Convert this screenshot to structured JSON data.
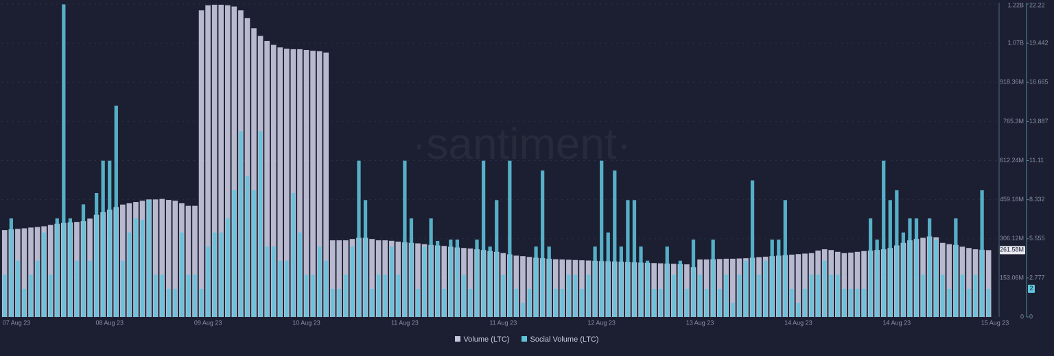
{
  "chart_data": {
    "type": "bar",
    "watermark": "·santiment·",
    "categories": [
      null,
      "07 Aug 23",
      null,
      null,
      null,
      null,
      null,
      null,
      null,
      null,
      null,
      null,
      null,
      null,
      null,
      null,
      "08 Aug 23",
      null,
      null,
      null,
      null,
      null,
      null,
      null,
      null,
      null,
      null,
      null,
      null,
      null,
      null,
      "09 Aug 23",
      null,
      null,
      null,
      null,
      null,
      null,
      null,
      null,
      null,
      null,
      null,
      null,
      null,
      null,
      "10 Aug 23",
      null,
      null,
      null,
      null,
      null,
      null,
      null,
      null,
      null,
      null,
      null,
      null,
      null,
      null,
      "11 Aug 23",
      null,
      null,
      null,
      null,
      null,
      null,
      null,
      null,
      null,
      null,
      null,
      null,
      null,
      null,
      "11 Aug 23",
      null,
      null,
      null,
      null,
      null,
      null,
      null,
      null,
      null,
      null,
      null,
      null,
      null,
      null,
      "12 Aug 23",
      null,
      null,
      null,
      null,
      null,
      null,
      null,
      null,
      null,
      null,
      null,
      null,
      null,
      null,
      "13 Aug 23",
      null,
      null,
      null,
      null,
      null,
      null,
      null,
      null,
      null,
      null,
      null,
      null,
      null,
      null,
      "14 Aug 23",
      null,
      null,
      null,
      null,
      null,
      null,
      null,
      null,
      null,
      null,
      null,
      null,
      null,
      null,
      "14 Aug 23",
      null,
      null,
      null,
      null,
      null,
      null,
      null,
      null,
      null,
      null,
      null,
      null,
      null,
      null,
      "15 Aug 23"
    ],
    "series": [
      {
        "name": "Volume (LTC)",
        "color": "#c5c7dc",
        "values": [
          340000000,
          343000000,
          345000000,
          347000000,
          350000000,
          352000000,
          355000000,
          360000000,
          365000000,
          368000000,
          370000000,
          372000000,
          375000000,
          385000000,
          400000000,
          410000000,
          420000000,
          430000000,
          440000000,
          445000000,
          450000000,
          455000000,
          460000000,
          460000000,
          462000000,
          458000000,
          455000000,
          445000000,
          435000000,
          435000000,
          1200000000,
          1220000000,
          1222000000,
          1222000000,
          1220000000,
          1215000000,
          1200000000,
          1170000000,
          1130000000,
          1100000000,
          1080000000,
          1065000000,
          1055000000,
          1050000000,
          1048000000,
          1048000000,
          1045000000,
          1042000000,
          1040000000,
          1035000000,
          300000000,
          300000000,
          300000000,
          305000000,
          310000000,
          310000000,
          305000000,
          300000000,
          300000000,
          298000000,
          295000000,
          292000000,
          290000000,
          288000000,
          285000000,
          282000000,
          280000000,
          278000000,
          275000000,
          272000000,
          270000000,
          268000000,
          265000000,
          262000000,
          258000000,
          255000000,
          250000000,
          245000000,
          240000000,
          238000000,
          235000000,
          232000000,
          230000000,
          228000000,
          226000000,
          225000000,
          224000000,
          223000000,
          222000000,
          221000000,
          220000000,
          219000000,
          218000000,
          217000000,
          216000000,
          215000000,
          214000000,
          213000000,
          212000000,
          211000000,
          210000000,
          209000000,
          208000000,
          207000000,
          206000000,
          195000000,
          225000000,
          225000000,
          226000000,
          227000000,
          228000000,
          228000000,
          229000000,
          230000000,
          232000000,
          234000000,
          236000000,
          238000000,
          240000000,
          242000000,
          244000000,
          246000000,
          248000000,
          250000000,
          260000000,
          265000000,
          262000000,
          255000000,
          250000000,
          252000000,
          255000000,
          258000000,
          260000000,
          262000000,
          265000000,
          270000000,
          280000000,
          290000000,
          300000000,
          305000000,
          310000000,
          315000000,
          312000000,
          290000000,
          285000000,
          282000000,
          275000000,
          270000000,
          265000000,
          263000000,
          261580000,
          null
        ]
      },
      {
        "name": "Social Volume (LTC)",
        "color": "#5ec4dc",
        "axis": "y2",
        "values": [
          3,
          7,
          4,
          2,
          3,
          4,
          6,
          3,
          7,
          22.2,
          7,
          4,
          8,
          4,
          8.8,
          11.1,
          11.1,
          15,
          4,
          6,
          7,
          6.9,
          8.3,
          3,
          3,
          2,
          2,
          6,
          3,
          3,
          2,
          5,
          6,
          6,
          7,
          9,
          13.2,
          10,
          9,
          13.2,
          5,
          5,
          4,
          4,
          8.8,
          6,
          3,
          3,
          5,
          4,
          2,
          2,
          3,
          5,
          11.1,
          8.3,
          2,
          3,
          3,
          5,
          3,
          11.1,
          7,
          2,
          5,
          7,
          5.4,
          2,
          5.5,
          5.5,
          3,
          2,
          5.5,
          11.1,
          5,
          8.3,
          3,
          11.1,
          2,
          1,
          2,
          5,
          10.4,
          5,
          2,
          2,
          3,
          3,
          2,
          3,
          5,
          11.1,
          6,
          10.4,
          5,
          8.3,
          8.3,
          5,
          4,
          2,
          2,
          5,
          3,
          4,
          2,
          5.5,
          3,
          2,
          5.5,
          2,
          3,
          1,
          3,
          4,
          9.7,
          3,
          4,
          5.5,
          5.5,
          8.3,
          2,
          1,
          2,
          3,
          3,
          4,
          3,
          3,
          2,
          2,
          2,
          2,
          7,
          5.5,
          11.1,
          8.3,
          9,
          6,
          7,
          7,
          3,
          7,
          5.5,
          3,
          2,
          7,
          3,
          2,
          3,
          9,
          2,
          null
        ]
      }
    ],
    "ylim": [
      0,
      1224480000
    ],
    "yticks": [
      0,
      {
        "value": 153060000,
        "label": "153.06M"
      },
      {
        "value": 306120000,
        "label": "306.12M"
      },
      {
        "value": 459180000,
        "label": "459.18M"
      },
      {
        "value": 612240000,
        "label": "612.24M"
      },
      {
        "value": 765300000,
        "label": "765.3M"
      },
      {
        "value": 918360000,
        "label": "918.36M"
      },
      {
        "value": 1071420000,
        "label": "1.07B"
      },
      {
        "value": 1224480000,
        "label": "1.22B"
      }
    ],
    "y2lim": [
      0,
      22.22
    ],
    "y2ticks": [
      0,
      2.777,
      5.555,
      8.332,
      11.11,
      13.887,
      16.665,
      19.442,
      22.22
    ],
    "grid": true,
    "annotations": [
      {
        "value": 261580000,
        "label": "261.58M",
        "axis": "y"
      },
      {
        "value": 2,
        "label": "2",
        "axis": "y2"
      }
    ]
  }
}
